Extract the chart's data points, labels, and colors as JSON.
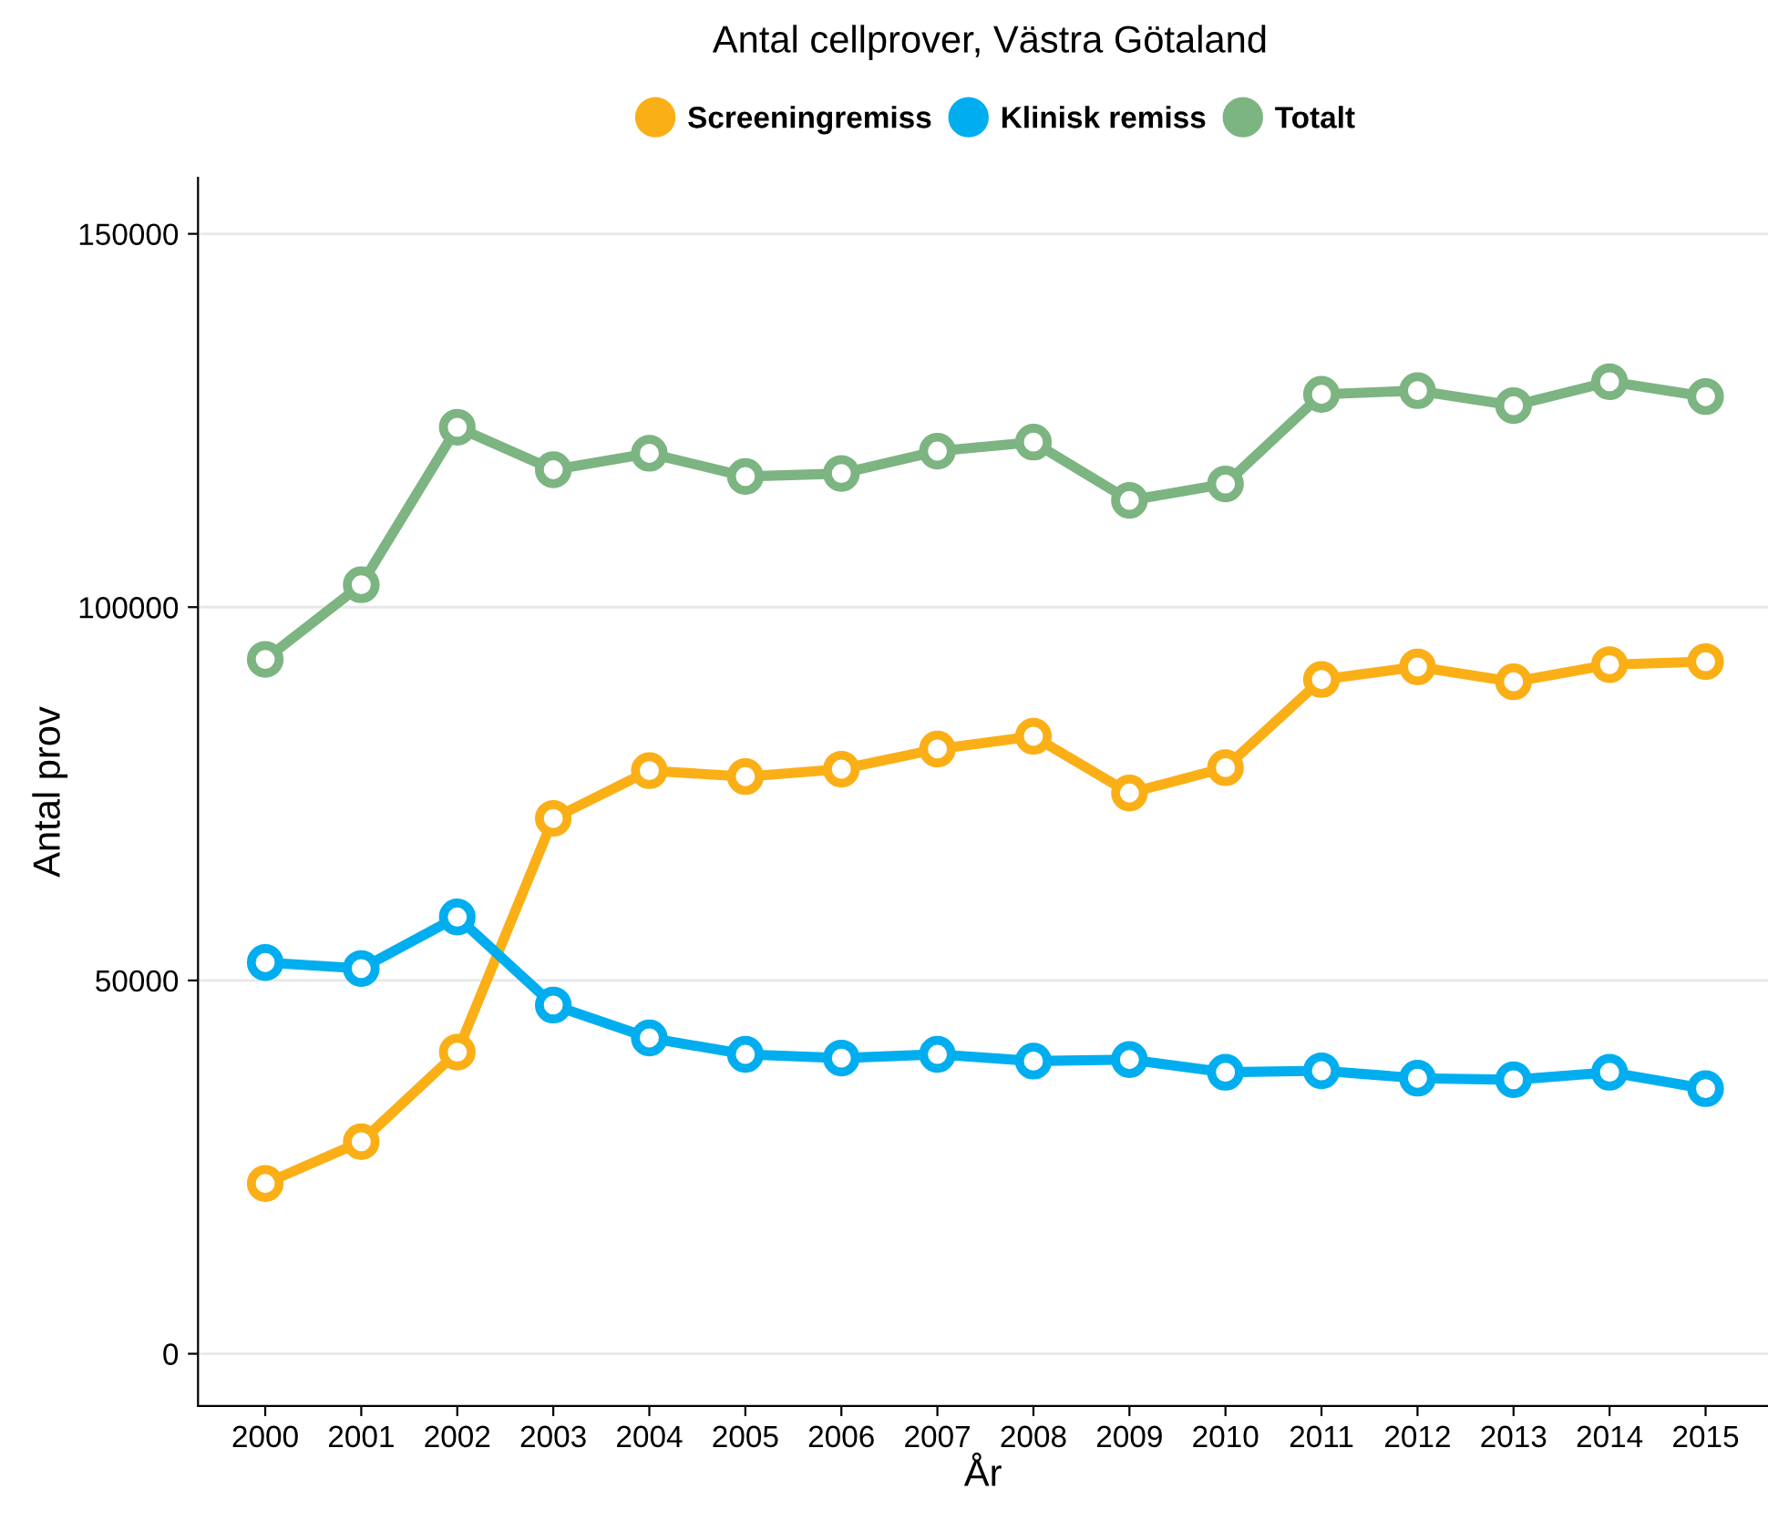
{
  "chart_data": {
    "type": "line",
    "title": "Antal cellprover, Västra Götaland",
    "xlabel": "År",
    "ylabel": "Antal prov",
    "categories": [
      "2000",
      "2001",
      "2002",
      "2003",
      "2004",
      "2005",
      "2006",
      "2007",
      "2008",
      "2009",
      "2010",
      "2011",
      "2012",
      "2013",
      "2014",
      "2015"
    ],
    "series": [
      {
        "name": "Screeningremiss",
        "color": "#fbaf17",
        "values": [
          22800,
          28400,
          40400,
          71700,
          78100,
          77300,
          78300,
          81000,
          82700,
          75100,
          78500,
          90300,
          92000,
          90000,
          92300,
          92700
        ]
      },
      {
        "name": "Klinisk remiss",
        "color": "#00aeef",
        "values": [
          52400,
          51600,
          58500,
          46700,
          42300,
          40100,
          39600,
          40100,
          39200,
          39400,
          37700,
          37900,
          36900,
          36700,
          37700,
          35500
        ]
      },
      {
        "name": "Totalt",
        "color": "#7cb482",
        "values": [
          93000,
          103000,
          124100,
          118400,
          120600,
          117500,
          117900,
          120900,
          122100,
          114300,
          116500,
          128500,
          129000,
          127000,
          130200,
          128200
        ]
      }
    ],
    "ylim": [
      -7000,
      157500
    ],
    "yticks": [
      0,
      50000,
      100000,
      150000
    ],
    "grid": "y",
    "legend": "top",
    "marker": "circle",
    "line_style": "solid"
  }
}
